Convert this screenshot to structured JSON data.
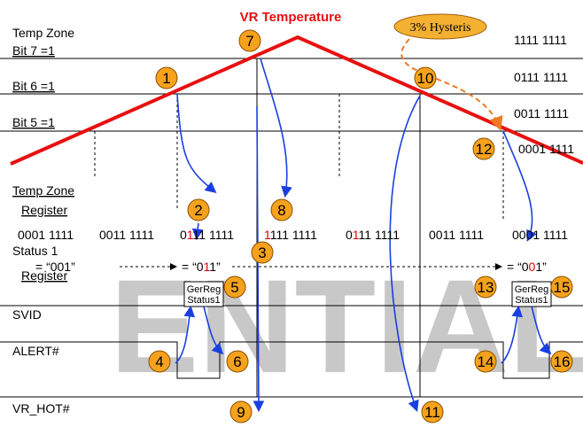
{
  "title": "VR Temperature",
  "watermark": "ENTIAL",
  "hysteresis": "3% Hysteris",
  "left_labels": {
    "temp_zone": "Temp Zone",
    "bit7": "Bit 7 =1",
    "bit6": "Bit 6 =1",
    "bit5": "Bit 5 =1",
    "temp_zone_register": [
      "Temp Zone",
      "Register"
    ],
    "status_register": [
      "Status 1",
      "Register"
    ],
    "svid": "SVID",
    "alert": "ALERT#",
    "vr_hot": "VR_HOT#"
  },
  "right_labels": [
    "1111 1111",
    "0111 1111",
    "0011 1111",
    "0001 1111"
  ],
  "register_values": [
    [
      {
        "text": "0001 1111"
      }
    ],
    [
      {
        "text": "0011 1111"
      }
    ],
    [
      {
        "text": "0"
      },
      {
        "text": "1",
        "color": "#e00000"
      },
      {
        "text": "11 1111"
      }
    ],
    [
      {
        "text": "1",
        "color": "#e00000"
      },
      {
        "text": "111 1111"
      }
    ],
    [
      {
        "text": "0"
      },
      {
        "text": "1",
        "color": "#e00000"
      },
      {
        "text": "11 1111"
      }
    ],
    [
      {
        "text": "0011 1111"
      }
    ],
    [
      {
        "text": "0001 1111"
      }
    ]
  ],
  "status_values": [
    [
      {
        "text": "= “001”"
      }
    ],
    [
      {
        "text": "= “0"
      },
      {
        "text": "1",
        "color": "#e00000"
      },
      {
        "text": "1”"
      }
    ],
    [
      {
        "text": "= “0"
      },
      {
        "text": "0",
        "color": "#e00000"
      },
      {
        "text": "1”"
      }
    ]
  ],
  "boxes": [
    [
      "GerReg",
      "Status1"
    ],
    [
      "GerReg",
      "Status1"
    ]
  ],
  "markers": [
    1,
    2,
    3,
    4,
    5,
    6,
    7,
    8,
    9,
    10,
    11,
    12,
    13,
    14,
    15,
    16
  ]
}
